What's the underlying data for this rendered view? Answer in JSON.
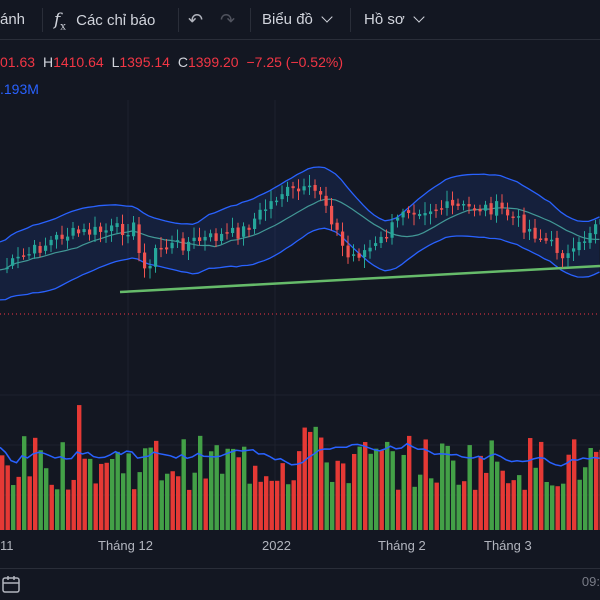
{
  "toolbar": {
    "compare_label": "ánh",
    "indicators_label": "Các chỉ báo",
    "chart_type_label": "Biểu đồ",
    "profile_label": "Hồ sơ",
    "fx_symbol": "f",
    "fx_sub": "x",
    "undo_icon": "↶",
    "redo_icon": "↷"
  },
  "ohlc": {
    "open_value": "01.63",
    "high_label": "H",
    "high_value": "1410.64",
    "low_label": "L",
    "low_value": "1395.14",
    "close_label": "C",
    "close_value": "1399.20",
    "change": "−7.25 (−0.52%)"
  },
  "volume": {
    "value": ".193M"
  },
  "x_axis": {
    "labels": [
      "11",
      "Tháng 12",
      "2022",
      "Tháng 2",
      "Tháng 3"
    ]
  },
  "time_label": "09:",
  "colors": {
    "up": "#26a69a",
    "down": "#ef5350",
    "volume_up": "#43a047",
    "volume_down": "#e53935",
    "band": "#2962ff",
    "ma": "#4db6ac",
    "trendline": "#66bb6a",
    "background": "#131722"
  },
  "chart_data": {
    "type": "candlestick",
    "last_candle": {
      "high": 1410.64,
      "low": 1395.14,
      "close": 1399.2,
      "change": -7.25,
      "change_pct": -0.52
    },
    "x_tick_labels": [
      "11",
      "Tháng 12",
      "2022",
      "Tháng 2",
      "Tháng 3"
    ],
    "overlays": [
      "bollinger-bands",
      "moving-average",
      "trendline"
    ],
    "volume_panel": true,
    "volume_moving_average": true,
    "grid": true
  }
}
